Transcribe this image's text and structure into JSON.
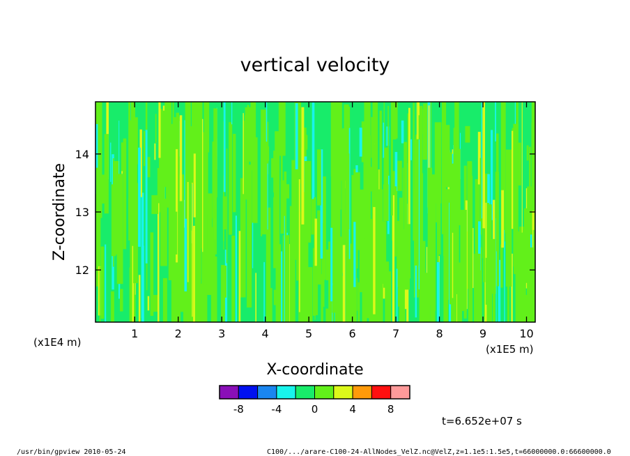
{
  "chart_data": {
    "type": "heatmap",
    "title": "vertical velocity",
    "xlabel": "X-coordinate",
    "ylabel": "Z-coordinate",
    "x_unit": "(x1E5 m)",
    "y_unit": "(x1E4 m)",
    "xlim": [
      0.1,
      10.2
    ],
    "ylim": [
      11.1,
      14.9
    ],
    "x_ticks": [
      "1",
      "2",
      "3",
      "4",
      "5",
      "6",
      "7",
      "8",
      "9",
      "10"
    ],
    "y_ticks": [
      "12",
      "13",
      "14"
    ],
    "colorbar": {
      "levels": [
        -10,
        -8,
        -6,
        -4,
        -2,
        0,
        2,
        4,
        6,
        8,
        10
      ],
      "colors": [
        "#8a0fb8",
        "#0010f0",
        "#1a86f0",
        "#18f4ec",
        "#18ec6a",
        "#62f01a",
        "#dcf81a",
        "#ff9a0a",
        "#ff1010",
        "#ff9a9a"
      ],
      "tick_labels": [
        "-8",
        "-4",
        "0",
        "4",
        "8"
      ],
      "tick_values": [
        -8,
        -4,
        0,
        4,
        8
      ]
    },
    "grid": false,
    "legend": "colorbar bottom-center"
  },
  "time_label": "t=6.652e+07 s",
  "footer_left": "/usr/bin/gpview   2010-05-24",
  "footer_right": "C100/.../arare-C100-24-AllNodes_VelZ.nc@VelZ,z=1.1e5:1.5e5,t=66000000.0:66600000.0"
}
